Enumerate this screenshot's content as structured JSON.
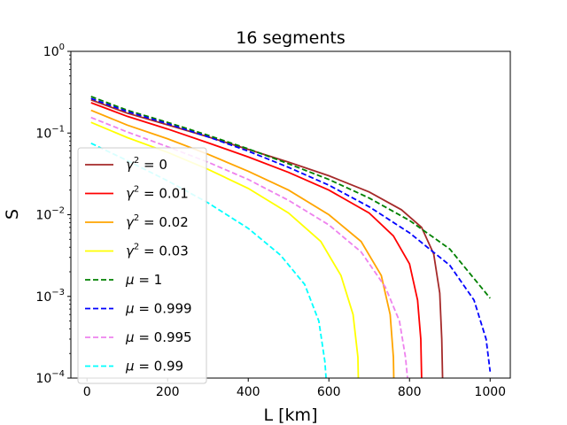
{
  "chart_data": {
    "type": "line",
    "title": "16 segments",
    "xlabel": "L [km]",
    "ylabel": "S",
    "xscale": "linear",
    "yscale": "log",
    "xlim": [
      -40,
      1050
    ],
    "ylim": [
      0.0001,
      1
    ],
    "xticks": [
      0,
      200,
      400,
      600,
      800,
      1000
    ],
    "xtick_labels": [
      "0",
      "200",
      "400",
      "600",
      "800",
      "1000"
    ],
    "yticks": [
      0.0001,
      0.001,
      0.01,
      0.1,
      1
    ],
    "ytick_labels": [
      {
        "base": "10",
        "exp": "−4"
      },
      {
        "base": "10",
        "exp": "−3"
      },
      {
        "base": "10",
        "exp": "−2"
      },
      {
        "base": "10",
        "exp": "−1"
      },
      {
        "base": "10",
        "exp": "0"
      }
    ],
    "grid": false,
    "legend_position": "center-left",
    "series": [
      {
        "name": "γ² = 0",
        "symbol": "γ",
        "sup": "2",
        "value": "= 0",
        "color": "#a52a2a",
        "dash": "solid",
        "points": [
          [
            10,
            0.255
          ],
          [
            100,
            0.175
          ],
          [
            200,
            0.126
          ],
          [
            300,
            0.09
          ],
          [
            400,
            0.063
          ],
          [
            500,
            0.044
          ],
          [
            600,
            0.03
          ],
          [
            700,
            0.019
          ],
          [
            780,
            0.0115
          ],
          [
            830,
            0.007
          ],
          [
            860,
            0.0033
          ],
          [
            875,
            0.0011
          ],
          [
            880,
            0.0003
          ],
          [
            882,
            0.0001
          ]
        ]
      },
      {
        "name": "γ² = 0.01",
        "symbol": "γ",
        "sup": "2",
        "value": "= 0.01",
        "color": "#ff0000",
        "dash": "solid",
        "points": [
          [
            10,
            0.235
          ],
          [
            100,
            0.16
          ],
          [
            200,
            0.112
          ],
          [
            300,
            0.076
          ],
          [
            400,
            0.051
          ],
          [
            500,
            0.033
          ],
          [
            600,
            0.02
          ],
          [
            700,
            0.0105
          ],
          [
            760,
            0.0055
          ],
          [
            800,
            0.0025
          ],
          [
            820,
            0.0009
          ],
          [
            828,
            0.0003
          ],
          [
            830,
            0.0001
          ]
        ]
      },
      {
        "name": "γ² = 0.02",
        "symbol": "γ",
        "sup": "2",
        "value": "= 0.02",
        "color": "#ffa500",
        "dash": "solid",
        "points": [
          [
            10,
            0.19
          ],
          [
            100,
            0.125
          ],
          [
            200,
            0.085
          ],
          [
            300,
            0.055
          ],
          [
            400,
            0.034
          ],
          [
            500,
            0.02
          ],
          [
            600,
            0.01
          ],
          [
            680,
            0.0047
          ],
          [
            730,
            0.0018
          ],
          [
            752,
            0.0006
          ],
          [
            760,
            0.00018
          ],
          [
            761,
            0.0001
          ]
        ]
      },
      {
        "name": "γ² = 0.03",
        "symbol": "γ",
        "sup": "2",
        "value": "= 0.03",
        "color": "#ffff00",
        "dash": "solid",
        "points": [
          [
            10,
            0.135
          ],
          [
            100,
            0.088
          ],
          [
            200,
            0.058
          ],
          [
            300,
            0.036
          ],
          [
            400,
            0.021
          ],
          [
            500,
            0.0105
          ],
          [
            580,
            0.0047
          ],
          [
            630,
            0.0018
          ],
          [
            660,
            0.0006
          ],
          [
            672,
            0.00018
          ],
          [
            673,
            0.0001
          ]
        ]
      },
      {
        "name": "μ = 1",
        "symbol": "μ",
        "sup": "",
        "value": "= 1",
        "color": "#008000",
        "dash": "dashed",
        "points": [
          [
            10,
            0.28
          ],
          [
            100,
            0.19
          ],
          [
            200,
            0.135
          ],
          [
            300,
            0.094
          ],
          [
            400,
            0.064
          ],
          [
            500,
            0.042
          ],
          [
            600,
            0.027
          ],
          [
            700,
            0.016
          ],
          [
            800,
            0.0085
          ],
          [
            900,
            0.0038
          ],
          [
            1000,
            0.00095
          ]
        ]
      },
      {
        "name": "μ = 0.999",
        "symbol": "μ",
        "sup": "",
        "value": "= 0.999",
        "color": "#0000ff",
        "dash": "dashed",
        "points": [
          [
            10,
            0.265
          ],
          [
            100,
            0.183
          ],
          [
            200,
            0.13
          ],
          [
            300,
            0.09
          ],
          [
            400,
            0.06
          ],
          [
            500,
            0.038
          ],
          [
            600,
            0.023
          ],
          [
            700,
            0.0125
          ],
          [
            800,
            0.006
          ],
          [
            900,
            0.0024
          ],
          [
            960,
            0.0009
          ],
          [
            990,
            0.0003
          ],
          [
            1000,
            0.00012
          ]
        ]
      },
      {
        "name": "μ = 0.995",
        "symbol": "μ",
        "sup": "",
        "value": "= 0.995",
        "color": "#ee82ee",
        "dash": "dashed",
        "points": [
          [
            10,
            0.155
          ],
          [
            100,
            0.103
          ],
          [
            200,
            0.068
          ],
          [
            300,
            0.044
          ],
          [
            400,
            0.027
          ],
          [
            500,
            0.015
          ],
          [
            600,
            0.0075
          ],
          [
            680,
            0.0035
          ],
          [
            740,
            0.0013
          ],
          [
            775,
            0.0005
          ],
          [
            790,
            0.00018
          ],
          [
            795,
            0.0001
          ]
        ]
      },
      {
        "name": "μ = 0.99",
        "symbol": "μ",
        "sup": "",
        "value": "= 0.99",
        "color": "#00ffff",
        "dash": "dashed",
        "points": [
          [
            10,
            0.075
          ],
          [
            100,
            0.046
          ],
          [
            200,
            0.026
          ],
          [
            300,
            0.014
          ],
          [
            400,
            0.0068
          ],
          [
            480,
            0.0032
          ],
          [
            540,
            0.0014
          ],
          [
            575,
            0.0005
          ],
          [
            590,
            0.00016
          ],
          [
            593,
            0.0001
          ]
        ]
      }
    ]
  }
}
